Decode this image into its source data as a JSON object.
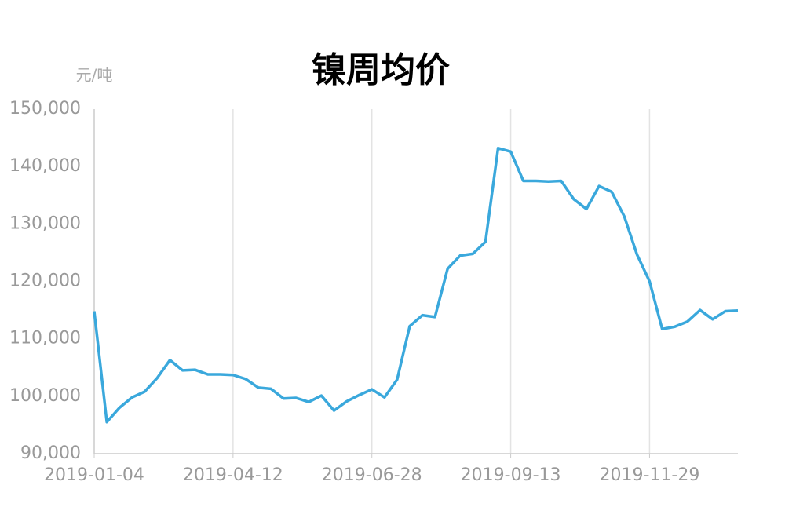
{
  "chart_data": {
    "type": "line",
    "title": "镍周均价",
    "y_label": "元/吨",
    "categories": [
      "2019-01-04",
      null,
      null,
      null,
      null,
      null,
      null,
      null,
      null,
      null,
      null,
      "2019-04-12",
      null,
      null,
      null,
      null,
      null,
      null,
      null,
      null,
      null,
      null,
      "2019-06-28",
      null,
      null,
      null,
      null,
      null,
      null,
      null,
      null,
      null,
      null,
      "2019-09-13",
      null,
      null,
      null,
      null,
      null,
      null,
      null,
      null,
      null,
      null,
      "2019-11-29",
      null,
      null,
      null,
      null,
      null,
      null,
      null
    ],
    "series": [
      {
        "name": "镍周均价",
        "color": "#3aa8dc",
        "values": [
          114800,
          95500,
          98000,
          99800,
          100800,
          103200,
          106300,
          104500,
          104600,
          103800,
          103800,
          103700,
          103000,
          101500,
          101300,
          99600,
          99700,
          99000,
          100100,
          97500,
          99100,
          100200,
          101200,
          99800,
          102900,
          112200,
          114100,
          113800,
          122200,
          124500,
          124800,
          126900,
          143200,
          142600,
          137500,
          137500,
          137400,
          137500,
          134300,
          132600,
          136600,
          135600,
          131300,
          124700,
          120000,
          111700,
          112100,
          113000,
          115000,
          113400,
          114800,
          114900
        ]
      }
    ],
    "ylim": [
      90000,
      150000
    ],
    "yticks": [
      {
        "value": 90000,
        "label": "90,000"
      },
      {
        "value": 100000,
        "label": "100,000"
      },
      {
        "value": 110000,
        "label": "110,000"
      },
      {
        "value": 120000,
        "label": "120,000"
      },
      {
        "value": 130000,
        "label": "130,000"
      },
      {
        "value": 140000,
        "label": "140,000"
      },
      {
        "value": 150000,
        "label": "150,000"
      }
    ],
    "grid": true
  }
}
